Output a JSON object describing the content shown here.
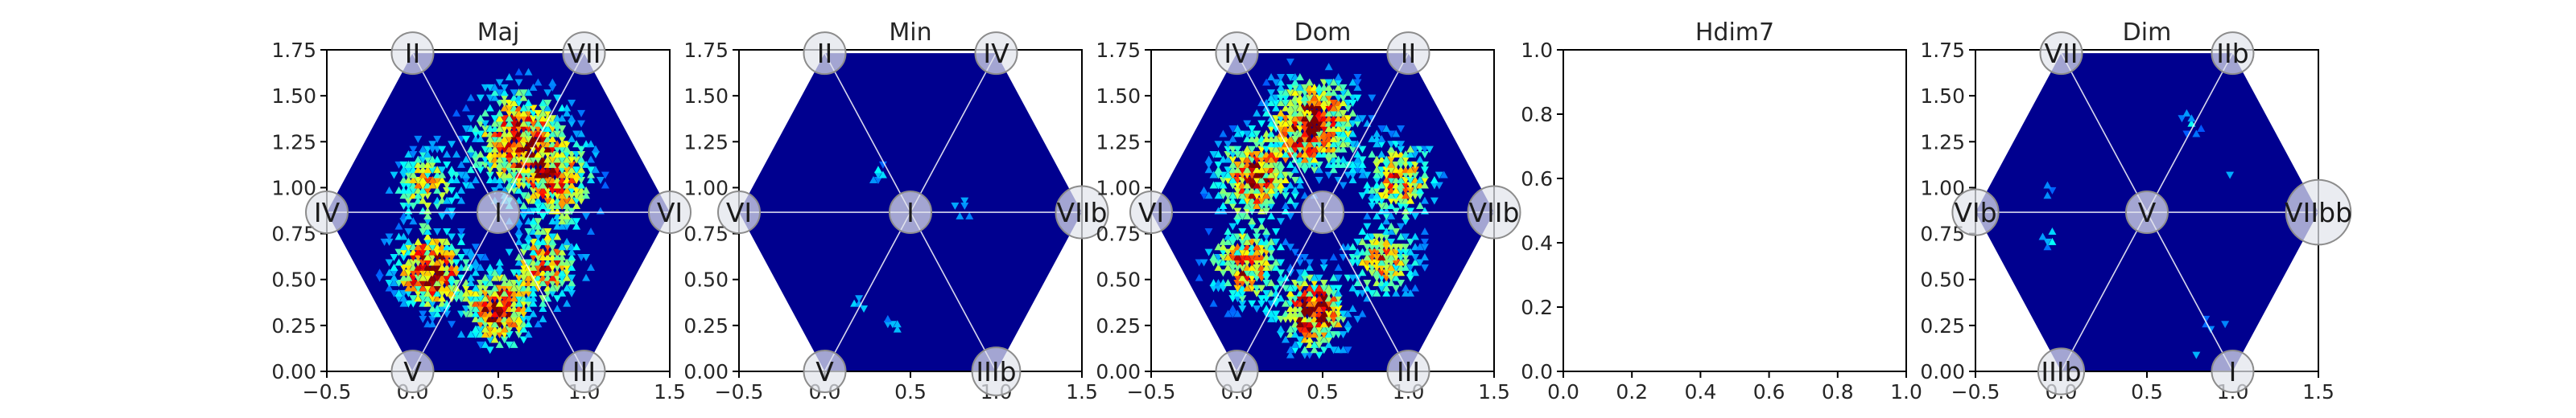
{
  "colors": {
    "background_low": "#00008f",
    "colormap": "jet",
    "node_fill": "#e2e4ec",
    "node_stroke": "#8c8c8c",
    "spoke": "#ffffff"
  },
  "chart_data": [
    {
      "type": "heatmap",
      "shape": "hexagon-hexbin",
      "title": "Maj",
      "xlim": [
        -0.5,
        1.5
      ],
      "ylim": [
        0.0,
        1.75
      ],
      "xticks": [
        "−0.5",
        "0.0",
        "0.5",
        "1.0",
        "1.5"
      ],
      "yticks": [
        "0.00",
        "0.25",
        "0.50",
        "0.75",
        "1.00",
        "1.25",
        "1.50",
        "1.75"
      ],
      "nodes": [
        {
          "label": "I",
          "x": 0.5,
          "y": 0.866,
          "size": 1.0
        },
        {
          "label": "II",
          "x": 0.0,
          "y": 1.732,
          "size": 1.0
        },
        {
          "label": "VII",
          "x": 1.0,
          "y": 1.732,
          "size": 1.0
        },
        {
          "label": "IV",
          "x": -0.5,
          "y": 0.866,
          "size": 1.0
        },
        {
          "label": "VI",
          "x": 1.5,
          "y": 0.866,
          "size": 1.0
        },
        {
          "label": "V",
          "x": 0.0,
          "y": 0.0,
          "size": 1.0
        },
        {
          "label": "III",
          "x": 1.0,
          "y": 0.0,
          "size": 1.0
        }
      ],
      "density_clusters": [
        {
          "x": 0.62,
          "y": 1.26,
          "spread": 0.17,
          "peak": 0.7
        },
        {
          "x": 0.85,
          "y": 1.02,
          "spread": 0.14,
          "peak": 0.5
        },
        {
          "x": 0.08,
          "y": 1.02,
          "spread": 0.12,
          "peak": 0.45
        },
        {
          "x": 0.1,
          "y": 0.55,
          "spread": 0.13,
          "peak": 0.8
        },
        {
          "x": 0.5,
          "y": 0.33,
          "spread": 0.12,
          "peak": 0.75
        },
        {
          "x": 0.78,
          "y": 0.58,
          "spread": 0.12,
          "peak": 0.6
        }
      ]
    },
    {
      "type": "heatmap",
      "shape": "hexagon-hexbin",
      "title": "Min",
      "xlim": [
        -0.5,
        1.5
      ],
      "ylim": [
        0.0,
        1.75
      ],
      "xticks": [
        "−0.5",
        "0.0",
        "0.5",
        "1.0",
        "1.5"
      ],
      "yticks": [
        "0.00",
        "0.25",
        "0.50",
        "0.75",
        "1.00",
        "1.25",
        "1.50",
        "1.75"
      ],
      "nodes": [
        {
          "label": "I",
          "x": 0.5,
          "y": 0.866,
          "size": 1.0
        },
        {
          "label": "II",
          "x": 0.0,
          "y": 1.732,
          "size": 1.0
        },
        {
          "label": "IV",
          "x": 1.0,
          "y": 1.732,
          "size": 1.0
        },
        {
          "label": "VI",
          "x": -0.5,
          "y": 0.866,
          "size": 1.0
        },
        {
          "label": "VIIb",
          "x": 1.5,
          "y": 0.866,
          "size": 1.25
        },
        {
          "label": "V",
          "x": 0.0,
          "y": 0.0,
          "size": 1.0
        },
        {
          "label": "IIIb",
          "x": 1.0,
          "y": 0.0,
          "size": 1.15
        }
      ],
      "density_clusters": [
        {
          "x": 0.3,
          "y": 1.07,
          "spread": 0.05,
          "peak": 0.16
        },
        {
          "x": 0.8,
          "y": 0.9,
          "spread": 0.05,
          "peak": 0.14
        },
        {
          "x": 0.2,
          "y": 0.37,
          "spread": 0.05,
          "peak": 0.14
        },
        {
          "x": 0.42,
          "y": 0.25,
          "spread": 0.05,
          "peak": 0.15
        }
      ]
    },
    {
      "type": "heatmap",
      "shape": "hexagon-hexbin",
      "title": "Dom",
      "xlim": [
        -0.5,
        1.5
      ],
      "ylim": [
        0.0,
        1.75
      ],
      "xticks": [
        "−0.5",
        "0.0",
        "0.5",
        "1.0",
        "1.5"
      ],
      "yticks": [
        "0.00",
        "0.25",
        "0.50",
        "0.75",
        "1.00",
        "1.25",
        "1.50",
        "1.75"
      ],
      "nodes": [
        {
          "label": "I",
          "x": 0.5,
          "y": 0.866,
          "size": 1.0
        },
        {
          "label": "IV",
          "x": 0.0,
          "y": 1.732,
          "size": 1.0
        },
        {
          "label": "II",
          "x": 1.0,
          "y": 1.732,
          "size": 1.0
        },
        {
          "label": "VI",
          "x": -0.5,
          "y": 0.866,
          "size": 1.0
        },
        {
          "label": "VIIb",
          "x": 1.5,
          "y": 0.866,
          "size": 1.25
        },
        {
          "label": "V",
          "x": 0.0,
          "y": 0.0,
          "size": 1.0
        },
        {
          "label": "III",
          "x": 1.0,
          "y": 0.0,
          "size": 1.0
        }
      ],
      "density_clusters": [
        {
          "x": 0.45,
          "y": 1.35,
          "spread": 0.16,
          "peak": 0.75
        },
        {
          "x": 0.1,
          "y": 1.05,
          "spread": 0.14,
          "peak": 0.65
        },
        {
          "x": 0.95,
          "y": 1.05,
          "spread": 0.13,
          "peak": 0.55
        },
        {
          "x": 0.05,
          "y": 0.58,
          "spread": 0.13,
          "peak": 0.6
        },
        {
          "x": 0.45,
          "y": 0.32,
          "spread": 0.12,
          "peak": 0.85
        },
        {
          "x": 0.85,
          "y": 0.6,
          "spread": 0.12,
          "peak": 0.55
        }
      ]
    },
    {
      "type": "heatmap",
      "shape": "empty",
      "title": "Hdim7",
      "xlim": [
        0.0,
        1.0
      ],
      "ylim": [
        0.0,
        1.0
      ],
      "xticks": [
        "0.0",
        "0.2",
        "0.4",
        "0.6",
        "0.8",
        "1.0"
      ],
      "yticks": [
        "0.0",
        "0.2",
        "0.4",
        "0.6",
        "0.8",
        "1.0"
      ],
      "nodes": [],
      "density_clusters": []
    },
    {
      "type": "heatmap",
      "shape": "hexagon-hexbin",
      "title": "Dim",
      "xlim": [
        -0.5,
        1.5
      ],
      "ylim": [
        0.0,
        1.75
      ],
      "xticks": [
        "−0.5",
        "0.0",
        "0.5",
        "1.0",
        "1.5"
      ],
      "yticks": [
        "0.00",
        "0.25",
        "0.50",
        "0.75",
        "1.00",
        "1.25",
        "1.50",
        "1.75"
      ],
      "nodes": [
        {
          "label": "V",
          "x": 0.5,
          "y": 0.866,
          "size": 1.0
        },
        {
          "label": "VII",
          "x": 0.0,
          "y": 1.732,
          "size": 1.0
        },
        {
          "label": "IIb",
          "x": 1.0,
          "y": 1.732,
          "size": 1.0
        },
        {
          "label": "VIb",
          "x": -0.5,
          "y": 0.866,
          "size": 1.1
        },
        {
          "label": "VIIbb",
          "x": 1.5,
          "y": 0.866,
          "size": 1.55
        },
        {
          "label": "IIIb",
          "x": 0.0,
          "y": 0.0,
          "size": 1.1
        },
        {
          "label": "I",
          "x": 1.0,
          "y": 0.0,
          "size": 1.0
        }
      ],
      "density_clusters": [
        {
          "x": 0.75,
          "y": 1.35,
          "spread": 0.05,
          "peak": 0.15
        },
        {
          "x": 1.0,
          "y": 1.12,
          "spread": 0.05,
          "peak": 0.14
        },
        {
          "x": -0.1,
          "y": 0.98,
          "spread": 0.05,
          "peak": 0.14
        },
        {
          "x": -0.05,
          "y": 0.72,
          "spread": 0.05,
          "peak": 0.15
        },
        {
          "x": 0.9,
          "y": 0.28,
          "spread": 0.05,
          "peak": 0.13
        },
        {
          "x": 0.8,
          "y": 0.13,
          "spread": 0.05,
          "peak": 0.15
        }
      ]
    }
  ]
}
